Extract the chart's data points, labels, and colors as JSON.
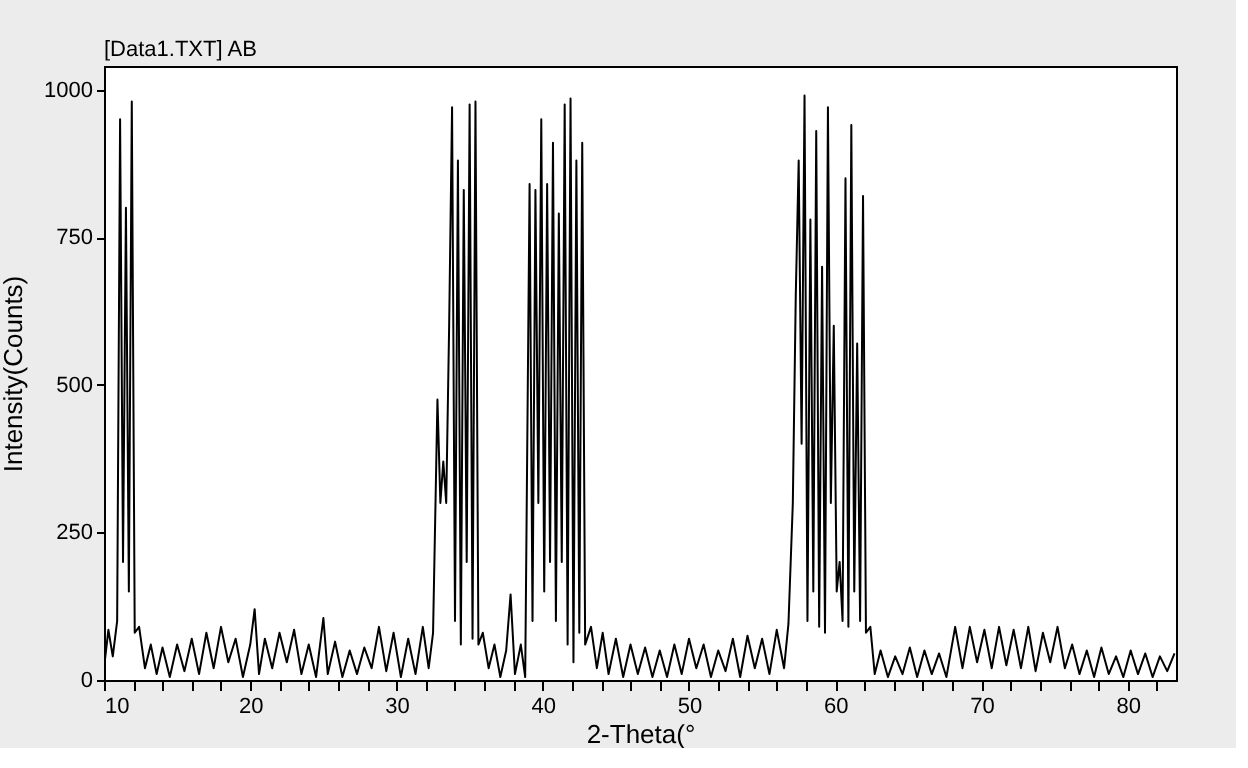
{
  "chart_data": {
    "type": "line",
    "title": "[Data1.TXT] AB",
    "xlabel": "2-Theta(°",
    "ylabel": "Intensity(Counts)",
    "x": [
      10.0,
      10.3,
      10.6,
      10.9,
      11.1,
      11.3,
      11.5,
      11.7,
      11.9,
      12.1,
      12.4,
      12.8,
      13.2,
      13.6,
      14.0,
      14.5,
      15.0,
      15.5,
      16.0,
      16.5,
      17.0,
      17.5,
      18.0,
      18.5,
      19.0,
      19.5,
      20.0,
      20.3,
      20.6,
      21.0,
      21.5,
      22.0,
      22.5,
      23.0,
      23.5,
      24.0,
      24.5,
      25.0,
      25.3,
      25.8,
      26.3,
      26.8,
      27.3,
      27.8,
      28.3,
      28.8,
      29.3,
      29.8,
      30.3,
      30.8,
      31.3,
      31.8,
      32.2,
      32.5,
      32.8,
      33.0,
      33.2,
      33.4,
      33.6,
      33.8,
      34.0,
      34.2,
      34.4,
      34.6,
      34.8,
      35.0,
      35.2,
      35.4,
      35.6,
      35.9,
      36.3,
      36.7,
      37.1,
      37.5,
      37.8,
      38.1,
      38.5,
      38.8,
      39.1,
      39.3,
      39.5,
      39.7,
      39.9,
      40.1,
      40.3,
      40.5,
      40.7,
      40.9,
      41.1,
      41.3,
      41.5,
      41.7,
      41.9,
      42.1,
      42.3,
      42.5,
      42.7,
      42.9,
      43.3,
      43.7,
      44.1,
      44.5,
      45.0,
      45.5,
      46.0,
      46.5,
      47.0,
      47.5,
      48.0,
      48.5,
      49.0,
      49.5,
      50.0,
      50.5,
      51.0,
      51.5,
      52.0,
      52.5,
      53.0,
      53.5,
      54.0,
      54.5,
      55.0,
      55.5,
      56.0,
      56.5,
      56.8,
      57.1,
      57.3,
      57.5,
      57.7,
      57.9,
      58.1,
      58.3,
      58.5,
      58.7,
      58.9,
      59.1,
      59.3,
      59.5,
      59.7,
      59.9,
      60.1,
      60.3,
      60.5,
      60.7,
      60.9,
      61.1,
      61.3,
      61.5,
      61.7,
      61.9,
      62.1,
      62.4,
      62.7,
      63.1,
      63.6,
      64.1,
      64.6,
      65.1,
      65.6,
      66.1,
      66.6,
      67.1,
      67.6,
      68.2,
      68.7,
      69.2,
      69.7,
      70.2,
      70.7,
      71.2,
      71.7,
      72.2,
      72.7,
      73.2,
      73.7,
      74.2,
      74.7,
      75.2,
      75.7,
      76.2,
      76.7,
      77.2,
      77.7,
      78.2,
      78.7,
      79.2,
      79.7,
      80.2,
      80.7,
      81.2,
      81.7,
      82.2,
      82.7,
      83.2
    ],
    "series": [
      {
        "color": "#000000",
        "values": [
          20,
          85,
          40,
          100,
          950,
          200,
          800,
          150,
          980,
          80,
          90,
          20,
          60,
          10,
          55,
          5,
          60,
          15,
          70,
          10,
          80,
          20,
          90,
          30,
          70,
          5,
          60,
          120,
          10,
          70,
          20,
          80,
          30,
          85,
          10,
          60,
          5,
          105,
          10,
          65,
          5,
          50,
          10,
          55,
          20,
          90,
          15,
          80,
          5,
          70,
          10,
          90,
          20,
          80,
          475,
          300,
          370,
          300,
          600,
          970,
          100,
          880,
          60,
          830,
          200,
          975,
          70,
          980,
          60,
          80,
          20,
          60,
          5,
          50,
          145,
          10,
          60,
          5,
          840,
          100,
          830,
          300,
          950,
          150,
          840,
          200,
          910,
          100,
          790,
          200,
          975,
          60,
          985,
          30,
          880,
          80,
          910,
          60,
          90,
          20,
          80,
          10,
          70,
          5,
          60,
          10,
          55,
          5,
          50,
          5,
          60,
          10,
          70,
          20,
          60,
          5,
          50,
          15,
          70,
          5,
          75,
          20,
          70,
          10,
          85,
          20,
          95,
          300,
          650,
          880,
          400,
          990,
          100,
          780,
          150,
          930,
          90,
          700,
          80,
          970,
          300,
          600,
          150,
          200,
          100,
          850,
          90,
          940,
          150,
          570,
          100,
          820,
          80,
          90,
          10,
          50,
          5,
          40,
          10,
          55,
          5,
          50,
          10,
          45,
          5,
          90,
          20,
          90,
          30,
          85,
          20,
          90,
          25,
          85,
          20,
          90,
          15,
          80,
          30,
          90,
          20,
          60,
          10,
          50,
          5,
          55,
          10,
          40,
          5,
          50,
          10,
          45,
          5,
          40,
          15,
          45
        ]
      }
    ],
    "xlim": [
      10,
      83.3
    ],
    "ylim": [
      0,
      1040
    ],
    "xticks": [
      10,
      {
        "value": 12,
        "label": null
      },
      {
        "value": 14,
        "label": null
      },
      {
        "value": 16,
        "label": null
      },
      {
        "value": 18,
        "label": null
      },
      20,
      {
        "value": 22,
        "label": null
      },
      {
        "value": 24,
        "label": null
      },
      {
        "value": 26,
        "label": null
      },
      {
        "value": 28,
        "label": null
      },
      30,
      {
        "value": 32,
        "label": null
      },
      {
        "value": 34,
        "label": null
      },
      {
        "value": 36,
        "label": null
      },
      {
        "value": 38,
        "label": null
      },
      40,
      {
        "value": 42,
        "label": null
      },
      {
        "value": 44,
        "label": null
      },
      {
        "value": 46,
        "label": null
      },
      {
        "value": 48,
        "label": null
      },
      50,
      {
        "value": 52,
        "label": null
      },
      {
        "value": 54,
        "label": null
      },
      {
        "value": 56,
        "label": null
      },
      {
        "value": 58,
        "label": null
      },
      60,
      {
        "value": 62,
        "label": null
      },
      {
        "value": 64,
        "label": null
      },
      {
        "value": 66,
        "label": null
      },
      {
        "value": 68,
        "label": null
      },
      70,
      {
        "value": 72,
        "label": null
      },
      {
        "value": 74,
        "label": null
      },
      {
        "value": 76,
        "label": null
      },
      {
        "value": 78,
        "label": null
      },
      80,
      {
        "value": 82,
        "label": null
      }
    ],
    "yticks": [
      0,
      250,
      500,
      750,
      1000
    ],
    "grid": false,
    "marker": "none",
    "line_style": "solid"
  }
}
